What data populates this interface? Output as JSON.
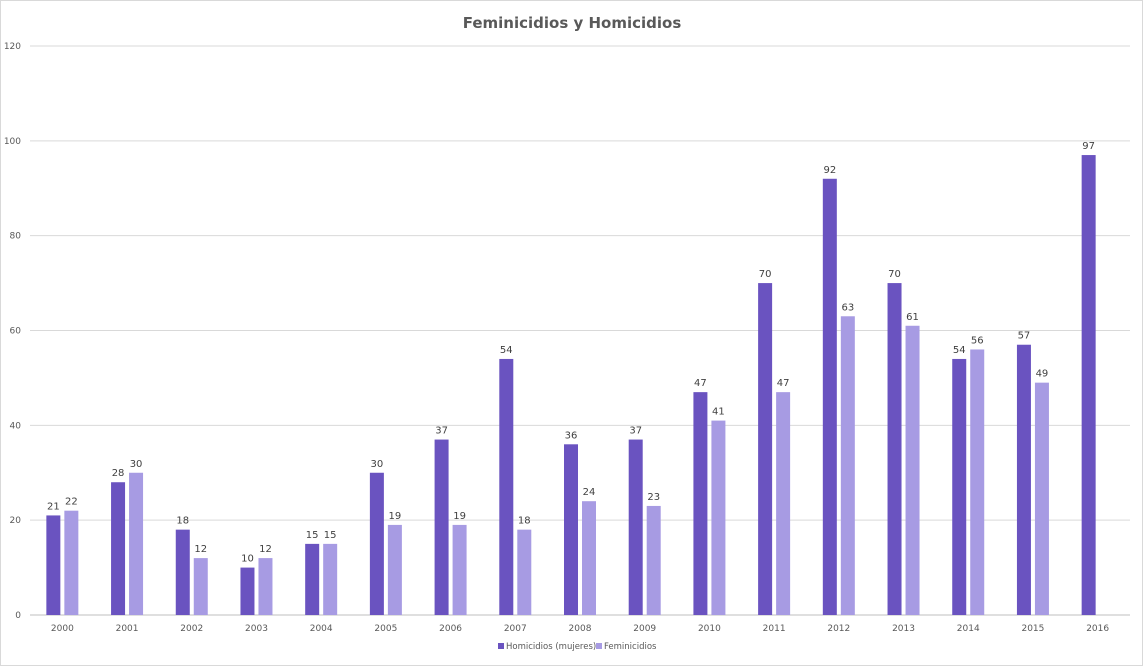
{
  "chart_data": {
    "type": "bar",
    "title": "Feminicidios y Homicidios",
    "xlabel": "",
    "ylabel": "",
    "ylim": [
      0,
      120
    ],
    "yticks": [
      0,
      20,
      40,
      60,
      80,
      100,
      120
    ],
    "grid": true,
    "legend_position": "bottom",
    "categories": [
      "2000",
      "2001",
      "2002",
      "2003",
      "2004",
      "2005",
      "2006",
      "2007",
      "2008",
      "2009",
      "2010",
      "2011",
      "2012",
      "2013",
      "2014",
      "2015",
      "2016"
    ],
    "series": [
      {
        "name": "Homicidios (mujeres)",
        "color": "#6a53c0",
        "values": [
          21,
          28,
          18,
          10,
          15,
          30,
          37,
          54,
          36,
          37,
          47,
          70,
          92,
          70,
          54,
          57,
          97
        ]
      },
      {
        "name": "Feminicidios",
        "color": "#a79be3",
        "values": [
          22,
          30,
          12,
          12,
          15,
          19,
          19,
          18,
          24,
          23,
          41,
          47,
          63,
          61,
          56,
          49,
          null
        ]
      }
    ]
  }
}
